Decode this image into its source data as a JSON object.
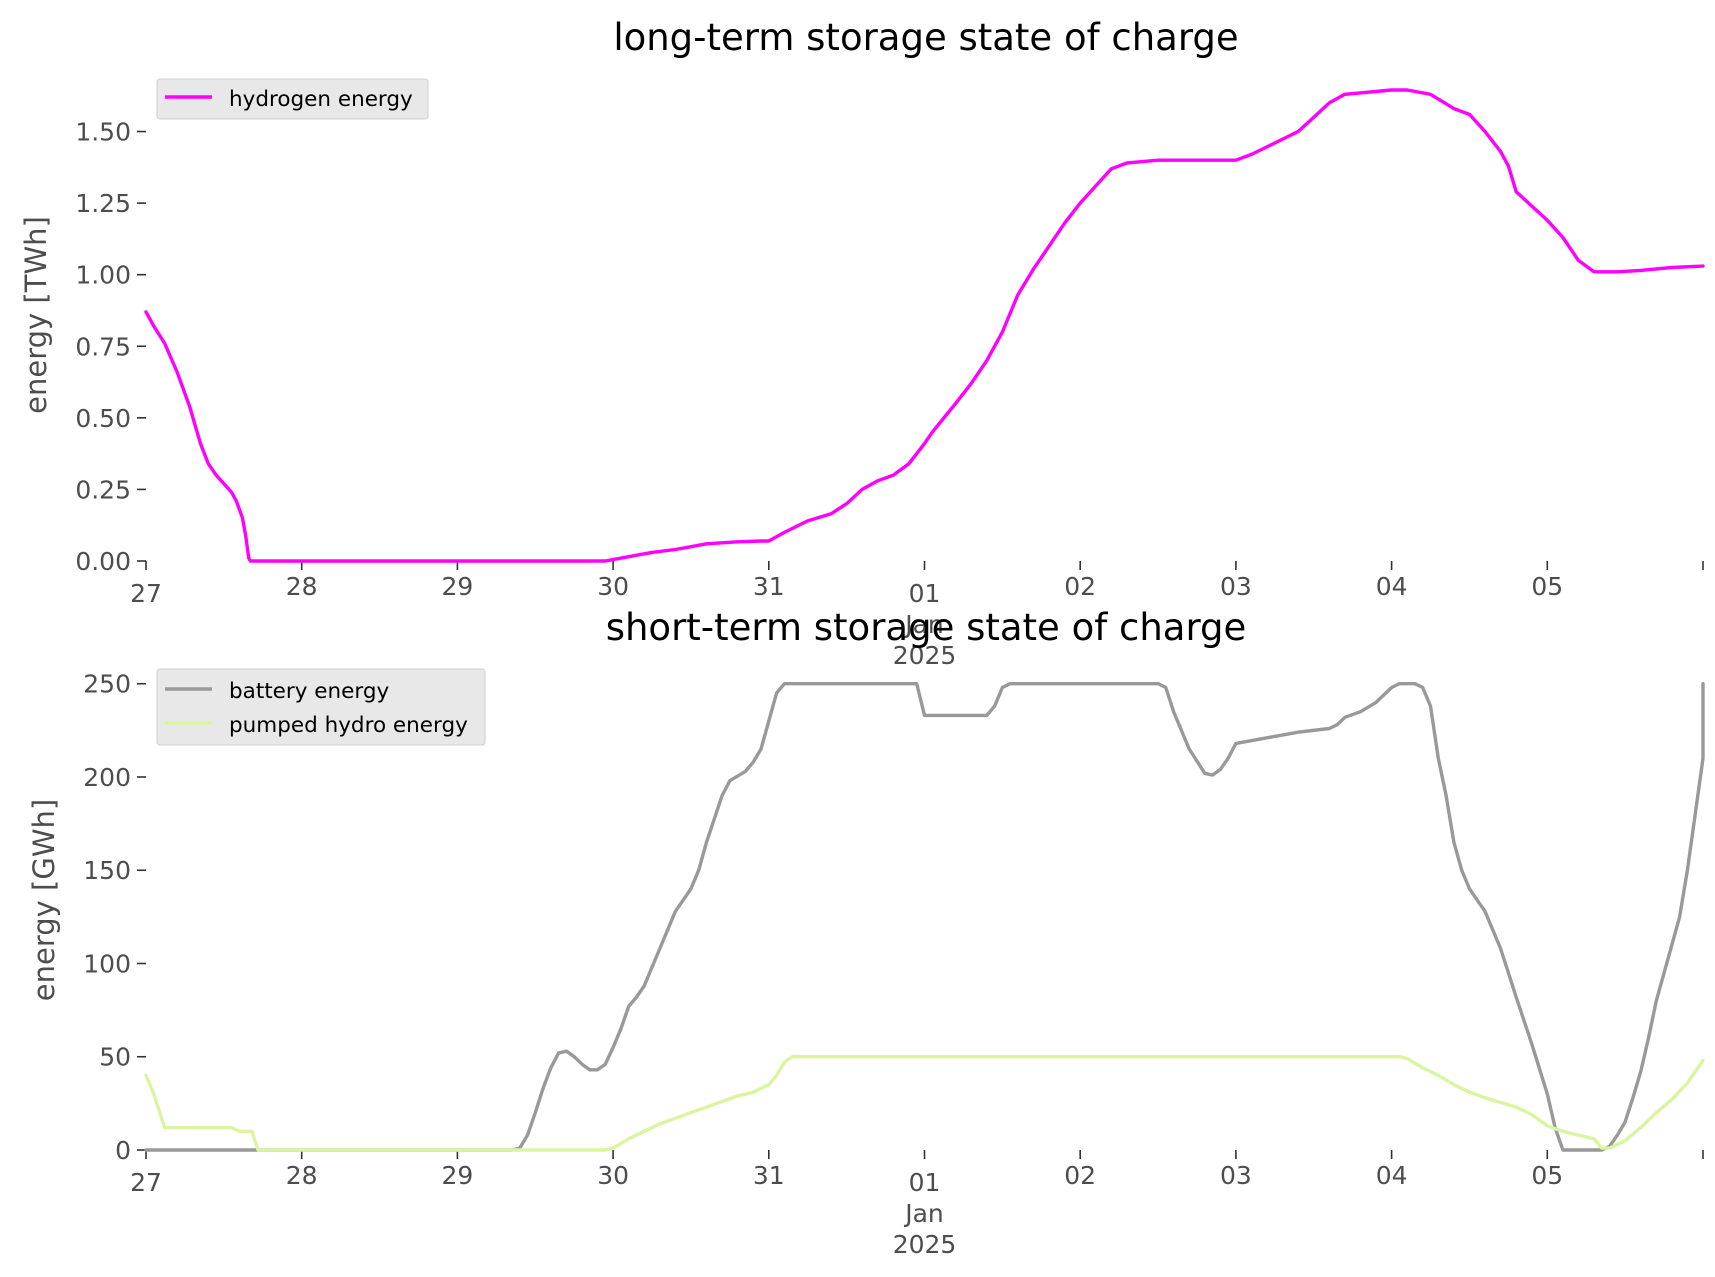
{
  "chart_data": [
    {
      "type": "line",
      "title": "long-term storage state of charge",
      "xlabel": "",
      "ylabel": "energy [TWh]",
      "x_tick_labels": [
        "27",
        "28",
        "29",
        "30",
        "31",
        "01",
        "02",
        "03",
        "04",
        "05"
      ],
      "x_tick_sublabels": [
        "Jan",
        "2025"
      ],
      "xlim": [
        0,
        10
      ],
      "ylim": [
        0,
        1.68
      ],
      "y_ticks": [
        0,
        0.25,
        0.5,
        0.75,
        1.0,
        1.25,
        1.5
      ],
      "y_tick_labels": [
        "0.00",
        "0.25",
        "0.50",
        "0.75",
        "1.00",
        "1.25",
        "1.50"
      ],
      "grid": false,
      "legend_position": "top-left",
      "series": [
        {
          "name": "hydrogen energy",
          "color": "#ff00ff",
          "points": [
            [
              0.0,
              0.87
            ],
            [
              0.05,
              0.82
            ],
            [
              0.12,
              0.76
            ],
            [
              0.2,
              0.66
            ],
            [
              0.28,
              0.54
            ],
            [
              0.35,
              0.41
            ],
            [
              0.4,
              0.34
            ],
            [
              0.45,
              0.3
            ],
            [
              0.5,
              0.27
            ],
            [
              0.55,
              0.24
            ],
            [
              0.58,
              0.21
            ],
            [
              0.62,
              0.15
            ],
            [
              0.64,
              0.09
            ],
            [
              0.66,
              0.01
            ],
            [
              0.67,
              0.0
            ],
            [
              2.0,
              0.0
            ],
            [
              2.95,
              0.0
            ],
            [
              3.0,
              0.005
            ],
            [
              3.1,
              0.015
            ],
            [
              3.25,
              0.03
            ],
            [
              3.4,
              0.04
            ],
            [
              3.6,
              0.06
            ],
            [
              3.8,
              0.067
            ],
            [
              3.95,
              0.07
            ],
            [
              4.0,
              0.07
            ],
            [
              4.1,
              0.1
            ],
            [
              4.25,
              0.14
            ],
            [
              4.4,
              0.165
            ],
            [
              4.5,
              0.2
            ],
            [
              4.6,
              0.25
            ],
            [
              4.7,
              0.28
            ],
            [
              4.8,
              0.3
            ],
            [
              4.9,
              0.34
            ],
            [
              5.0,
              0.41
            ],
            [
              5.05,
              0.45
            ],
            [
              5.2,
              0.55
            ],
            [
              5.3,
              0.62
            ],
            [
              5.4,
              0.7
            ],
            [
              5.5,
              0.8
            ],
            [
              5.6,
              0.93
            ],
            [
              5.7,
              1.02
            ],
            [
              5.8,
              1.1
            ],
            [
              5.9,
              1.18
            ],
            [
              6.0,
              1.25
            ],
            [
              6.1,
              1.31
            ],
            [
              6.2,
              1.37
            ],
            [
              6.3,
              1.39
            ],
            [
              6.5,
              1.4
            ],
            [
              6.8,
              1.4
            ],
            [
              7.0,
              1.4
            ],
            [
              7.1,
              1.42
            ],
            [
              7.25,
              1.46
            ],
            [
              7.4,
              1.5
            ],
            [
              7.5,
              1.55
            ],
            [
              7.6,
              1.6
            ],
            [
              7.7,
              1.63
            ],
            [
              7.9,
              1.64
            ],
            [
              8.0,
              1.645
            ],
            [
              8.1,
              1.645
            ],
            [
              8.25,
              1.63
            ],
            [
              8.4,
              1.58
            ],
            [
              8.5,
              1.56
            ],
            [
              8.6,
              1.5
            ],
            [
              8.7,
              1.43
            ],
            [
              8.75,
              1.38
            ],
            [
              8.8,
              1.29
            ],
            [
              8.9,
              1.24
            ],
            [
              9.0,
              1.19
            ],
            [
              9.1,
              1.13
            ],
            [
              9.2,
              1.05
            ],
            [
              9.3,
              1.01
            ],
            [
              9.45,
              1.01
            ],
            [
              9.6,
              1.015
            ],
            [
              9.8,
              1.025
            ],
            [
              10.0,
              1.03
            ]
          ]
        }
      ]
    },
    {
      "type": "line",
      "title": "short-term storage state of charge",
      "xlabel": "",
      "ylabel": "energy [GWh]",
      "x_tick_labels": [
        "27",
        "28",
        "29",
        "30",
        "31",
        "01",
        "02",
        "03",
        "04",
        "05"
      ],
      "x_tick_sublabels": [
        "Jan",
        "2025"
      ],
      "xlim": [
        0,
        10
      ],
      "ylim": [
        0,
        252
      ],
      "y_ticks": [
        0,
        50,
        100,
        150,
        200,
        250
      ],
      "y_tick_labels": [
        "0",
        "50",
        "100",
        "150",
        "200",
        "250"
      ],
      "grid": false,
      "legend_position": "top-left",
      "series": [
        {
          "name": "battery energy",
          "color": "#999999",
          "points": [
            [
              0.0,
              0
            ],
            [
              2.35,
              0
            ],
            [
              2.4,
              1
            ],
            [
              2.45,
              8
            ],
            [
              2.5,
              20
            ],
            [
              2.55,
              33
            ],
            [
              2.6,
              44
            ],
            [
              2.65,
              52
            ],
            [
              2.7,
              53
            ],
            [
              2.75,
              50
            ],
            [
              2.8,
              46
            ],
            [
              2.85,
              43
            ],
            [
              2.9,
              43
            ],
            [
              2.95,
              46
            ],
            [
              3.0,
              55
            ],
            [
              3.05,
              65
            ],
            [
              3.1,
              77
            ],
            [
              3.15,
              82
            ],
            [
              3.2,
              88
            ],
            [
              3.3,
              108
            ],
            [
              3.4,
              128
            ],
            [
              3.5,
              140
            ],
            [
              3.55,
              150
            ],
            [
              3.6,
              165
            ],
            [
              3.7,
              190
            ],
            [
              3.75,
              198
            ],
            [
              3.85,
              203
            ],
            [
              3.9,
              208
            ],
            [
              3.95,
              215
            ],
            [
              4.0,
              230
            ],
            [
              4.05,
              245
            ],
            [
              4.1,
              250
            ],
            [
              4.95,
              250
            ],
            [
              5.0,
              233
            ],
            [
              5.4,
              233
            ],
            [
              5.45,
              238
            ],
            [
              5.5,
              248
            ],
            [
              5.55,
              250
            ],
            [
              6.5,
              250
            ],
            [
              6.55,
              248
            ],
            [
              6.6,
              235
            ],
            [
              6.7,
              215
            ],
            [
              6.8,
              202
            ],
            [
              6.85,
              201
            ],
            [
              6.9,
              204
            ],
            [
              6.95,
              210
            ],
            [
              7.0,
              218
            ],
            [
              7.2,
              221
            ],
            [
              7.4,
              224
            ],
            [
              7.6,
              226
            ],
            [
              7.65,
              228
            ],
            [
              7.7,
              232
            ],
            [
              7.8,
              235
            ],
            [
              7.9,
              240
            ],
            [
              8.0,
              248
            ],
            [
              8.05,
              250
            ],
            [
              8.15,
              250
            ],
            [
              8.2,
              248
            ],
            [
              8.25,
              238
            ],
            [
              8.3,
              210
            ],
            [
              8.35,
              190
            ],
            [
              8.4,
              165
            ],
            [
              8.45,
              150
            ],
            [
              8.5,
              140
            ],
            [
              8.6,
              128
            ],
            [
              8.7,
              108
            ],
            [
              8.8,
              82
            ],
            [
              8.9,
              57
            ],
            [
              9.0,
              30
            ],
            [
              9.05,
              12
            ],
            [
              9.1,
              0
            ],
            [
              9.35,
              0
            ],
            [
              9.4,
              2
            ],
            [
              9.45,
              8
            ],
            [
              9.5,
              15
            ],
            [
              9.55,
              28
            ],
            [
              9.6,
              42
            ],
            [
              9.65,
              60
            ],
            [
              9.7,
              80
            ],
            [
              9.75,
              95
            ],
            [
              9.8,
              110
            ],
            [
              9.85,
              125
            ],
            [
              9.9,
              150
            ],
            [
              9.95,
              180
            ],
            [
              10.0,
              210
            ],
            [
              10.02,
              250
            ]
          ]
        },
        {
          "name": "pumped hydro energy",
          "color": "#d9f5a0",
          "points": [
            [
              0.0,
              40
            ],
            [
              0.05,
              30
            ],
            [
              0.12,
              12
            ],
            [
              0.55,
              12
            ],
            [
              0.6,
              10
            ],
            [
              0.68,
              10
            ],
            [
              0.72,
              0
            ],
            [
              2.95,
              0
            ],
            [
              3.0,
              1
            ],
            [
              3.1,
              6
            ],
            [
              3.2,
              10
            ],
            [
              3.3,
              14
            ],
            [
              3.4,
              17
            ],
            [
              3.5,
              20
            ],
            [
              3.6,
              23
            ],
            [
              3.7,
              26
            ],
            [
              3.8,
              29
            ],
            [
              3.9,
              31
            ],
            [
              4.0,
              35
            ],
            [
              4.05,
              40
            ],
            [
              4.1,
              47
            ],
            [
              4.15,
              50
            ],
            [
              8.05,
              50
            ],
            [
              8.1,
              49
            ],
            [
              8.2,
              44
            ],
            [
              8.3,
              40
            ],
            [
              8.4,
              35
            ],
            [
              8.5,
              31
            ],
            [
              8.6,
              28
            ],
            [
              8.8,
              23
            ],
            [
              8.9,
              19
            ],
            [
              9.0,
              13
            ],
            [
              9.1,
              10
            ],
            [
              9.2,
              8
            ],
            [
              9.3,
              6
            ],
            [
              9.35,
              1
            ],
            [
              9.4,
              1
            ],
            [
              9.5,
              5
            ],
            [
              9.6,
              12
            ],
            [
              9.7,
              20
            ],
            [
              9.8,
              27
            ],
            [
              9.9,
              36
            ],
            [
              10.0,
              48
            ]
          ]
        }
      ]
    }
  ]
}
